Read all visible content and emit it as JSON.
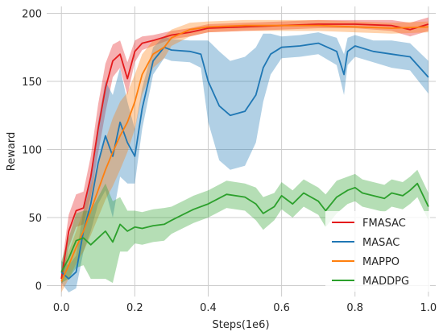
{
  "chart_data": {
    "type": "line",
    "title": "",
    "xlabel": "Steps(1e6)",
    "ylabel": "Reward",
    "xlim": [
      -0.04,
      1.02
    ],
    "ylim": [
      -8,
      205
    ],
    "xticks": [
      0.0,
      0.2,
      0.4,
      0.6,
      0.8,
      1.0
    ],
    "xtick_labels": [
      "0.0",
      "0.2",
      "0.4",
      "0.6",
      "0.8",
      "1.0"
    ],
    "yticks": [
      0,
      50,
      100,
      150,
      200
    ],
    "ytick_labels": [
      "0",
      "50",
      "100",
      "150",
      "200"
    ],
    "grid": true,
    "legend_position": "bottom-right",
    "series": [
      {
        "name": "FMASAC",
        "color": "#e41a1c",
        "x": [
          0.0,
          0.02,
          0.04,
          0.06,
          0.08,
          0.1,
          0.12,
          0.14,
          0.16,
          0.18,
          0.2,
          0.22,
          0.25,
          0.3,
          0.35,
          0.4,
          0.5,
          0.6,
          0.7,
          0.8,
          0.9,
          0.95,
          1.0
        ],
        "y": [
          5,
          40,
          55,
          57,
          80,
          115,
          145,
          165,
          170,
          152,
          172,
          178,
          180,
          184,
          186,
          189,
          190,
          191,
          192,
          192,
          191,
          188,
          192
        ],
        "band": [
          8,
          12,
          12,
          12,
          15,
          18,
          18,
          12,
          10,
          12,
          8,
          5,
          4,
          3,
          3,
          3,
          3,
          3,
          3,
          3,
          4,
          5,
          5
        ]
      },
      {
        "name": "MASAC",
        "color": "#1f77b4",
        "x": [
          0.0,
          0.02,
          0.04,
          0.06,
          0.08,
          0.1,
          0.12,
          0.14,
          0.16,
          0.18,
          0.2,
          0.22,
          0.25,
          0.28,
          0.3,
          0.35,
          0.38,
          0.4,
          0.43,
          0.46,
          0.5,
          0.53,
          0.55,
          0.57,
          0.6,
          0.65,
          0.7,
          0.75,
          0.77,
          0.78,
          0.8,
          0.85,
          0.9,
          0.95,
          1.0
        ],
        "y": [
          10,
          5,
          10,
          40,
          60,
          90,
          110,
          95,
          120,
          105,
          95,
          130,
          165,
          175,
          173,
          172,
          170,
          150,
          132,
          125,
          128,
          140,
          160,
          170,
          175,
          176,
          178,
          172,
          155,
          172,
          176,
          172,
          170,
          168,
          153
        ],
        "band": [
          8,
          10,
          12,
          15,
          20,
          30,
          40,
          45,
          40,
          30,
          20,
          15,
          10,
          8,
          8,
          8,
          10,
          30,
          40,
          40,
          40,
          35,
          25,
          15,
          8,
          8,
          8,
          10,
          15,
          10,
          8,
          8,
          10,
          10,
          12
        ]
      },
      {
        "name": "MAPPO",
        "color": "#ff7f0e",
        "x": [
          0.0,
          0.02,
          0.04,
          0.06,
          0.08,
          0.1,
          0.12,
          0.14,
          0.16,
          0.18,
          0.2,
          0.22,
          0.25,
          0.28,
          0.3,
          0.35,
          0.4,
          0.5,
          0.6,
          0.7,
          0.8,
          0.9,
          1.0
        ],
        "y": [
          3,
          15,
          28,
          40,
          55,
          70,
          85,
          98,
          110,
          120,
          135,
          155,
          170,
          175,
          182,
          188,
          190,
          191,
          191,
          191,
          190,
          189,
          190
        ],
        "band": [
          8,
          10,
          12,
          15,
          18,
          20,
          22,
          25,
          25,
          22,
          20,
          15,
          10,
          8,
          6,
          5,
          4,
          4,
          4,
          4,
          4,
          4,
          4
        ]
      },
      {
        "name": "MADDPG",
        "color": "#2ca02c",
        "x": [
          0.0,
          0.02,
          0.04,
          0.06,
          0.08,
          0.1,
          0.12,
          0.14,
          0.16,
          0.18,
          0.2,
          0.22,
          0.25,
          0.28,
          0.3,
          0.33,
          0.36,
          0.4,
          0.45,
          0.5,
          0.53,
          0.55,
          0.58,
          0.6,
          0.63,
          0.66,
          0.7,
          0.72,
          0.75,
          0.78,
          0.8,
          0.82,
          0.85,
          0.88,
          0.9,
          0.93,
          0.95,
          0.97,
          1.0
        ],
        "y": [
          10,
          20,
          33,
          35,
          30,
          35,
          40,
          32,
          45,
          40,
          43,
          42,
          44,
          45,
          48,
          52,
          56,
          60,
          67,
          65,
          60,
          53,
          58,
          66,
          60,
          68,
          62,
          55,
          65,
          70,
          72,
          68,
          66,
          64,
          68,
          66,
          70,
          75,
          58
        ],
        "band": [
          8,
          15,
          20,
          20,
          25,
          30,
          35,
          30,
          20,
          15,
          12,
          12,
          12,
          12,
          10,
          10,
          10,
          10,
          10,
          10,
          12,
          12,
          10,
          10,
          10,
          10,
          10,
          12,
          12,
          10,
          10,
          10,
          10,
          10,
          10,
          10,
          10,
          10,
          10
        ]
      }
    ]
  }
}
